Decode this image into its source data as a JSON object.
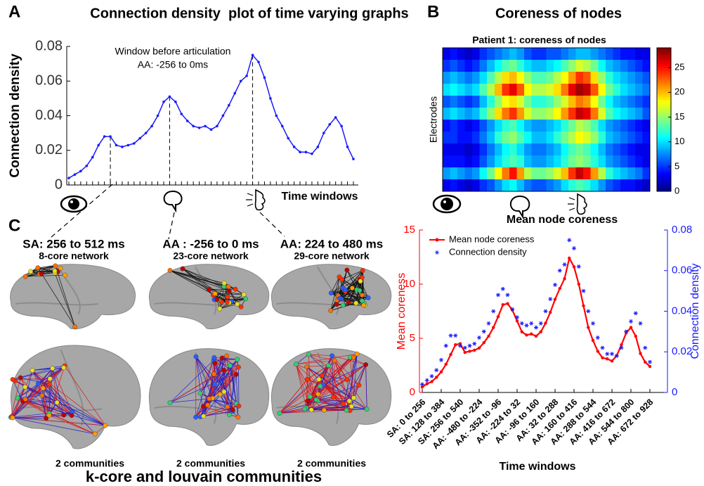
{
  "panel_labels": {
    "a": "A",
    "b": "B",
    "c": "C"
  },
  "chart_data": [
    {
      "type": "line",
      "title": "Connection density  plot of time varying graphs",
      "ylabel": "Connection density",
      "xlabel": "Time windows",
      "annotations": [
        "Window before articulation",
        "AA: -256 to 0ms"
      ],
      "categories": [
        null,
        null,
        null,
        null,
        null,
        null,
        null,
        null,
        null,
        null,
        null,
        null,
        null,
        null,
        null,
        null,
        null,
        null,
        null,
        null,
        null,
        null,
        null,
        null,
        null,
        null,
        null,
        null,
        null,
        null,
        null,
        null,
        null,
        null,
        null,
        null,
        null,
        null,
        null,
        null,
        null,
        null,
        null,
        null,
        null,
        null,
        null,
        null,
        null
      ],
      "values": [
        0.004,
        0.006,
        0.008,
        0.011,
        0.016,
        0.023,
        0.028,
        0.028,
        0.023,
        0.022,
        0.023,
        0.024,
        0.027,
        0.03,
        0.034,
        0.04,
        0.048,
        0.051,
        0.048,
        0.041,
        0.037,
        0.034,
        0.033,
        0.034,
        0.032,
        0.034,
        0.04,
        0.046,
        0.053,
        0.06,
        0.063,
        0.075,
        0.071,
        0.062,
        0.05,
        0.04,
        0.034,
        0.027,
        0.022,
        0.019,
        0.019,
        0.018,
        0.022,
        0.03,
        0.035,
        0.039,
        0.034,
        0.022,
        0.015
      ],
      "color": "#1a1aff",
      "ylim": [
        0,
        0.08
      ],
      "yticks": [
        0,
        0.02,
        0.04,
        0.06,
        0.08
      ]
    },
    {
      "type": "heatmap",
      "title": "Coreness of nodes",
      "subtitle": "Patient 1: coreness of nodes",
      "ylabel": "Electrodes",
      "colormap": "jet",
      "clim": [
        0,
        29
      ],
      "colorbar_ticks": [
        0,
        5,
        10,
        15,
        20,
        25
      ],
      "values": [
        [
          3,
          4,
          3,
          2,
          3,
          5,
          6,
          7,
          8,
          9,
          8,
          6,
          5,
          5,
          6,
          6,
          7,
          8,
          9,
          9,
          8,
          7,
          6,
          5,
          4,
          4,
          3,
          3
        ],
        [
          5,
          6,
          5,
          4,
          5,
          7,
          9,
          11,
          13,
          14,
          12,
          10,
          9,
          9,
          10,
          11,
          13,
          15,
          17,
          16,
          14,
          11,
          9,
          8,
          7,
          6,
          5,
          4
        ],
        [
          8,
          9,
          8,
          7,
          8,
          10,
          13,
          16,
          19,
          20,
          18,
          15,
          13,
          13,
          14,
          16,
          18,
          21,
          24,
          23,
          19,
          15,
          12,
          10,
          9,
          8,
          7,
          6
        ],
        [
          10,
          11,
          10,
          9,
          10,
          13,
          16,
          20,
          24,
          26,
          23,
          18,
          16,
          16,
          17,
          19,
          22,
          26,
          28,
          27,
          23,
          18,
          14,
          12,
          10,
          9,
          8,
          7
        ],
        [
          6,
          7,
          6,
          5,
          6,
          9,
          12,
          15,
          18,
          19,
          17,
          14,
          12,
          12,
          13,
          15,
          17,
          20,
          22,
          21,
          18,
          14,
          11,
          9,
          8,
          7,
          6,
          5
        ],
        [
          9,
          10,
          9,
          8,
          9,
          12,
          15,
          19,
          22,
          24,
          21,
          17,
          15,
          15,
          16,
          18,
          21,
          24,
          27,
          26,
          22,
          17,
          13,
          11,
          10,
          9,
          8,
          6
        ],
        [
          4,
          5,
          4,
          3,
          4,
          6,
          8,
          10,
          12,
          13,
          11,
          9,
          8,
          8,
          9,
          10,
          12,
          14,
          16,
          15,
          13,
          10,
          8,
          7,
          6,
          5,
          4,
          3
        ],
        [
          5,
          5,
          4,
          4,
          5,
          7,
          9,
          12,
          14,
          15,
          13,
          11,
          9,
          9,
          10,
          12,
          14,
          16,
          18,
          17,
          15,
          12,
          9,
          8,
          7,
          6,
          5,
          4
        ],
        [
          3,
          3,
          3,
          2,
          3,
          5,
          7,
          9,
          11,
          12,
          10,
          8,
          7,
          7,
          8,
          9,
          11,
          13,
          14,
          13,
          11,
          9,
          7,
          6,
          5,
          4,
          3,
          3
        ],
        [
          4,
          4,
          4,
          3,
          4,
          6,
          8,
          10,
          12,
          13,
          12,
          9,
          8,
          8,
          9,
          10,
          12,
          14,
          15,
          14,
          12,
          10,
          8,
          7,
          6,
          5,
          4,
          3
        ],
        [
          8,
          9,
          8,
          7,
          8,
          11,
          14,
          18,
          22,
          25,
          21,
          16,
          14,
          14,
          15,
          17,
          20,
          24,
          27,
          25,
          21,
          16,
          12,
          10,
          9,
          8,
          7,
          5
        ],
        [
          3,
          4,
          3,
          2,
          3,
          5,
          6,
          8,
          10,
          11,
          9,
          7,
          6,
          6,
          7,
          8,
          10,
          12,
          13,
          12,
          10,
          8,
          6,
          5,
          4,
          4,
          3,
          2
        ]
      ]
    },
    {
      "type": "line",
      "title": "Mean node coreness",
      "xlabel": "Time windows",
      "ylabel": "Mean coreness",
      "y2label": "Connection density",
      "categories": [
        "SA: 0 to 256",
        null,
        null,
        null,
        "SA: 128 to 384",
        null,
        null,
        null,
        "SA: 256 to 540",
        null,
        null,
        null,
        "AA: -480 to -224",
        null,
        null,
        null,
        "AA: -352 to -96",
        null,
        null,
        null,
        "AA: -224 to 32",
        null,
        null,
        null,
        "AA: -96 to 160",
        null,
        null,
        null,
        "AA: 32 to 288",
        null,
        null,
        null,
        "AA: 160 to 416",
        null,
        null,
        null,
        "AA: 288 to 544",
        null,
        null,
        null,
        "AA: 416 to 672",
        null,
        null,
        null,
        "AA: 544 to 800",
        null,
        null,
        null,
        "AA: 672 to 928"
      ],
      "series": [
        {
          "name": "Mean node coreness",
          "color": "#ff0000",
          "values": [
            0.5,
            0.8,
            1.0,
            1.4,
            1.9,
            2.6,
            3.5,
            4.4,
            4.5,
            3.7,
            3.8,
            3.9,
            4.1,
            4.6,
            5.2,
            6.0,
            7.0,
            8.1,
            8.2,
            7.6,
            6.6,
            5.6,
            5.3,
            5.4,
            5.2,
            5.6,
            6.4,
            7.4,
            8.6,
            9.6,
            10.5,
            12.4,
            11.6,
            10.0,
            8.0,
            6.0,
            4.8,
            3.8,
            3.2,
            3.1,
            2.9,
            3.4,
            4.4,
            5.5,
            6.0,
            5.2,
            3.6,
            2.8,
            2.4
          ]
        },
        {
          "name": "Connection density",
          "color": "#1a1aff",
          "axis": "y2",
          "markers_only": true,
          "values": [
            0.004,
            0.006,
            0.008,
            0.011,
            0.016,
            0.023,
            0.028,
            0.028,
            0.023,
            0.022,
            0.023,
            0.024,
            0.027,
            0.03,
            0.034,
            0.04,
            0.048,
            0.051,
            0.048,
            0.041,
            0.037,
            0.034,
            0.033,
            0.034,
            0.032,
            0.034,
            0.04,
            0.046,
            0.053,
            0.06,
            0.063,
            0.075,
            0.071,
            0.062,
            0.05,
            0.04,
            0.034,
            0.027,
            0.022,
            0.019,
            0.019,
            0.018,
            0.022,
            0.03,
            0.035,
            0.039,
            0.034,
            0.022,
            0.015
          ]
        }
      ],
      "ylim": [
        0,
        15
      ],
      "yticks": [
        0,
        5,
        10,
        15
      ],
      "y2lim": [
        0,
        0.08
      ],
      "y2ticks": [
        0,
        0.02,
        0.04,
        0.06,
        0.08
      ],
      "legend": "upper left"
    }
  ],
  "panel_c": {
    "columns": [
      {
        "title": "SA: 256 to 512 ms",
        "subtitle": "8-core network",
        "caption": "2 communities"
      },
      {
        "title": "AA : -256 to 0 ms",
        "subtitle": "23-core network",
        "caption": "2 communities"
      },
      {
        "title": "AA: 224 to 480 ms",
        "subtitle": "29-core network",
        "caption": "2 communities"
      }
    ],
    "footer": "k-core and louvain communities"
  }
}
